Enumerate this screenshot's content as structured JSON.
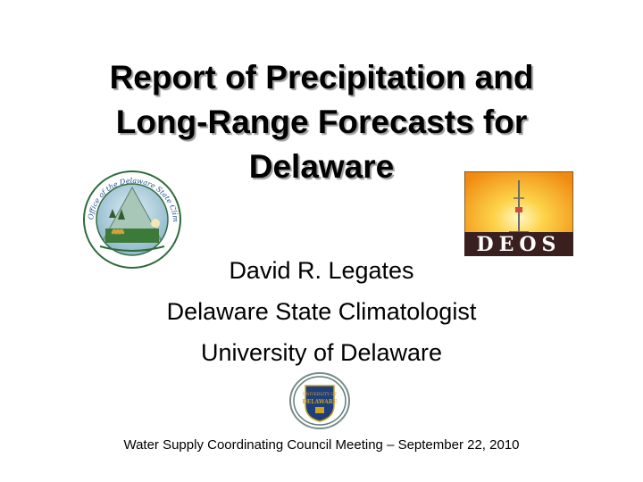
{
  "slide": {
    "title_lines": [
      "Report of Precipitation and",
      "Long-Range Forecasts for",
      "Delaware"
    ],
    "author_lines": [
      "David R. Legates",
      "Delaware State Climatologist",
      "University of Delaware"
    ],
    "footer": "Water Supply Coordinating Council Meeting – September 22, 2010"
  },
  "logos": {
    "climatologist": {
      "ring_text": "Office of the Delaware State Climatologist"
    },
    "deos": {
      "text": "DEOS"
    },
    "ud": {
      "line1": "UNIVERSITY OF",
      "line2": "DELAWARE"
    }
  },
  "colors": {
    "deos_sun": "#f7a21b",
    "deos_bar": "#3a1f1f",
    "ud_blue": "#1f3f7a",
    "ud_gold": "#c9a227"
  }
}
